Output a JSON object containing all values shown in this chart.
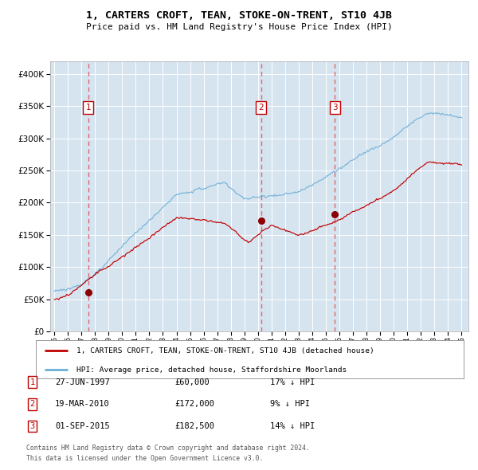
{
  "title": "1, CARTERS CROFT, TEAN, STOKE-ON-TRENT, ST10 4JB",
  "subtitle": "Price paid vs. HM Land Registry's House Price Index (HPI)",
  "legend_line1": "1, CARTERS CROFT, TEAN, STOKE-ON-TRENT, ST10 4JB (detached house)",
  "legend_line2": "HPI: Average price, detached house, Staffordshire Moorlands",
  "transactions": [
    {
      "num": 1,
      "date_label": "27-JUN-1997",
      "price": 60000,
      "pct": "17%",
      "dir": "↓",
      "x_year": 1997.5
    },
    {
      "num": 2,
      "date_label": "19-MAR-2010",
      "price": 172000,
      "pct": "9%",
      "dir": "↓",
      "x_year": 2010.22
    },
    {
      "num": 3,
      "date_label": "01-SEP-2015",
      "price": 182500,
      "pct": "14%",
      "dir": "↓",
      "x_year": 2015.67
    }
  ],
  "footer_line1": "Contains HM Land Registry data © Crown copyright and database right 2024.",
  "footer_line2": "This data is licensed under the Open Government Licence v3.0.",
  "hpi_color": "#6baed6",
  "price_color": "#c00000",
  "marker_color": "#8b0000",
  "vline_color": "#d9534f",
  "box_color": "#c00000",
  "background_plot": "#d6e4f0",
  "background_fig": "#ffffff",
  "grid_color": "#ffffff",
  "yticks": [
    0,
    50000,
    100000,
    150000,
    200000,
    250000,
    300000,
    350000,
    400000
  ],
  "ylim": [
    0,
    420000
  ],
  "xlim_start": 1994.7,
  "xlim_end": 2025.5,
  "x_ticks": [
    1995,
    1996,
    1997,
    1998,
    1999,
    2000,
    2001,
    2002,
    2003,
    2004,
    2005,
    2006,
    2007,
    2008,
    2009,
    2010,
    2011,
    2012,
    2013,
    2014,
    2015,
    2016,
    2017,
    2018,
    2019,
    2020,
    2021,
    2022,
    2023,
    2024,
    2025
  ]
}
